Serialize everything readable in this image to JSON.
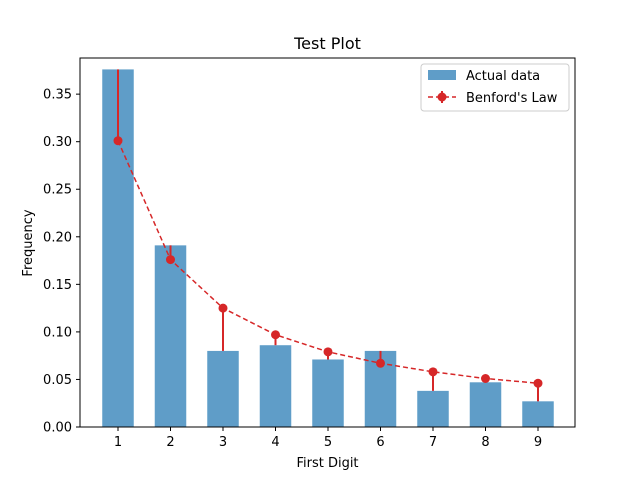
{
  "chart_data": {
    "type": "bar",
    "title": "Test Plot",
    "xlabel": "First Digit",
    "ylabel": "Frequency",
    "categories": [
      "1",
      "2",
      "3",
      "4",
      "5",
      "6",
      "7",
      "8",
      "9"
    ],
    "ylim": [
      0,
      0.388
    ],
    "yticks": [
      "0.00",
      "0.05",
      "0.10",
      "0.15",
      "0.20",
      "0.25",
      "0.30",
      "0.35"
    ],
    "legend_position": "top-right",
    "series": [
      {
        "name": "Actual data",
        "type": "bar",
        "color": "#5f9dc8",
        "values": [
          0.376,
          0.191,
          0.08,
          0.086,
          0.071,
          0.08,
          0.038,
          0.047,
          0.027
        ]
      },
      {
        "name": "Benford's Law",
        "type": "line",
        "style": "dashed",
        "marker": "circle",
        "color": "#d62728",
        "values": [
          0.301,
          0.176,
          0.125,
          0.097,
          0.079,
          0.067,
          0.058,
          0.051,
          0.046
        ],
        "error_to_actual": true
      }
    ]
  }
}
